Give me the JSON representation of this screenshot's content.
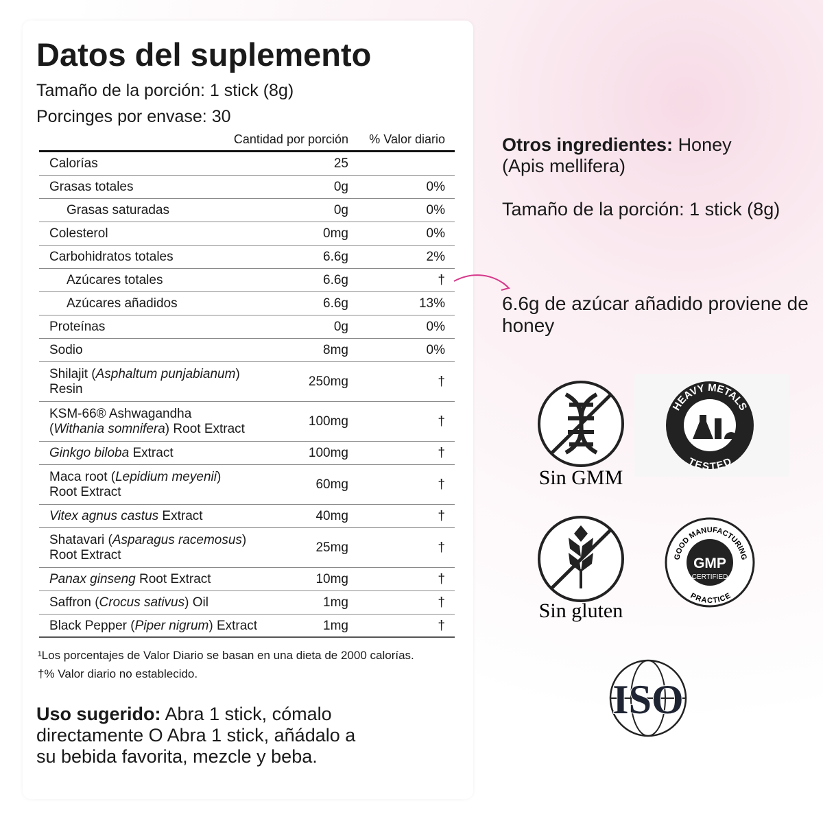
{
  "header": {
    "title": "Datos del suplemento",
    "serving_size": "Tamaño de la porción: 1 stick (8g)",
    "servings": "Porcinges por envase: 30"
  },
  "table": {
    "columns": [
      "Cantidad por porción",
      "% Valor diario"
    ],
    "rows": [
      {
        "name": [
          [
            "Calorías"
          ]
        ],
        "amount": "25"
      },
      {
        "name": [
          [
            "Grasas totales"
          ]
        ],
        "amount": "0g",
        "dv": "0%"
      },
      {
        "name": [
          [
            "Grasas saturadas"
          ]
        ],
        "indent": true,
        "amount": "0g",
        "dv": "0%"
      },
      {
        "name": [
          [
            "Colesterol"
          ]
        ],
        "amount": "0mg",
        "dv": "0%"
      },
      {
        "name": [
          [
            "Carbohidratos totales"
          ]
        ],
        "amount": "6.6g",
        "dv": "2%"
      },
      {
        "name": [
          [
            "Azúcares totales"
          ]
        ],
        "indent": true,
        "amount": "6.6g",
        "dv": "†"
      },
      {
        "name": [
          [
            "Azúcares añadidos"
          ]
        ],
        "indent": true,
        "amount": "6.6g",
        "dv": "13%"
      },
      {
        "name": [
          [
            "Proteínas"
          ]
        ],
        "amount": "0g",
        "dv": "0%"
      },
      {
        "name": [
          [
            "Sodio"
          ]
        ],
        "amount": "8mg",
        "dv": "0%"
      },
      {
        "name": [
          [
            "Shilajit (",
            {
              "text": "Asphaltum punjabianum",
              "italic": true
            },
            ")"
          ],
          [
            "Resin"
          ]
        ],
        "amount": "250mg",
        "dv": "†"
      },
      {
        "name": [
          [
            "KSM-66® Ashwagandha"
          ],
          [
            "(",
            {
              "text": "Withania somnifera",
              "italic": true
            },
            ") Root Extract"
          ]
        ],
        "amount": "100mg",
        "dv": "†"
      },
      {
        "name": [
          [
            {
              "text": "Ginkgo biloba",
              "italic": true
            },
            " Extract"
          ]
        ],
        "amount": "100mg",
        "dv": "†"
      },
      {
        "name": [
          [
            "Maca root (",
            {
              "text": "Lepidium meyenii",
              "italic": true
            },
            ")"
          ],
          [
            "Root Extract"
          ]
        ],
        "amount": "60mg",
        "dv": "†"
      },
      {
        "name": [
          [
            {
              "text": "Vitex agnus castus",
              "italic": true
            },
            " Extract"
          ]
        ],
        "amount": "40mg",
        "dv": "†"
      },
      {
        "name": [
          [
            "Shatavari (",
            {
              "text": "Asparagus racemosus",
              "italic": true
            },
            ")"
          ],
          [
            "Root Extract"
          ]
        ],
        "amount": "25mg",
        "dv": "†"
      },
      {
        "name": [
          [
            {
              "text": "Panax ginseng",
              "italic": true
            },
            " Root Extract"
          ]
        ],
        "amount": "10mg",
        "dv": "†"
      },
      {
        "name": [
          [
            "Saffron (",
            {
              "text": "Crocus sativus",
              "italic": true
            },
            ") Oil"
          ]
        ],
        "amount": "1mg",
        "dv": "†"
      },
      {
        "name": [
          [
            "Black Pepper (",
            {
              "text": "Piper nigrum",
              "italic": true
            },
            ") Extract"
          ]
        ],
        "amount": "1mg",
        "dv": "†"
      }
    ]
  },
  "footnotes": [
    "¹Los porcentajes de Valor Diario se basan en una dieta de 2000 calorías.",
    "†% Valor diario no establecido."
  ],
  "usage": {
    "label": "Uso sugerido:",
    "text": "Abra 1 stick, cómalo directamente O Abra 1 stick, añádalo a su bebida favorita, mezcle y beba."
  },
  "other_ingredients": {
    "label": "Otros ingredientes:",
    "text": "Honey (Apis mellifera)"
  },
  "serving_repeat": "Tamaño de la porción: 1 stick (8g)",
  "annotation": "6.6g de azúcar añadido proviene de honey",
  "badges": {
    "non_gmo": "Sin GMM",
    "gluten_free": "Sin gluten",
    "heavy_metals": [
      "HEAVY METALS",
      "TESTED"
    ],
    "gmp": [
      "GOOD MANUFACTURING",
      "PRACTICE",
      "GMP",
      "CERTIFIED"
    ],
    "iso": "ISO"
  }
}
